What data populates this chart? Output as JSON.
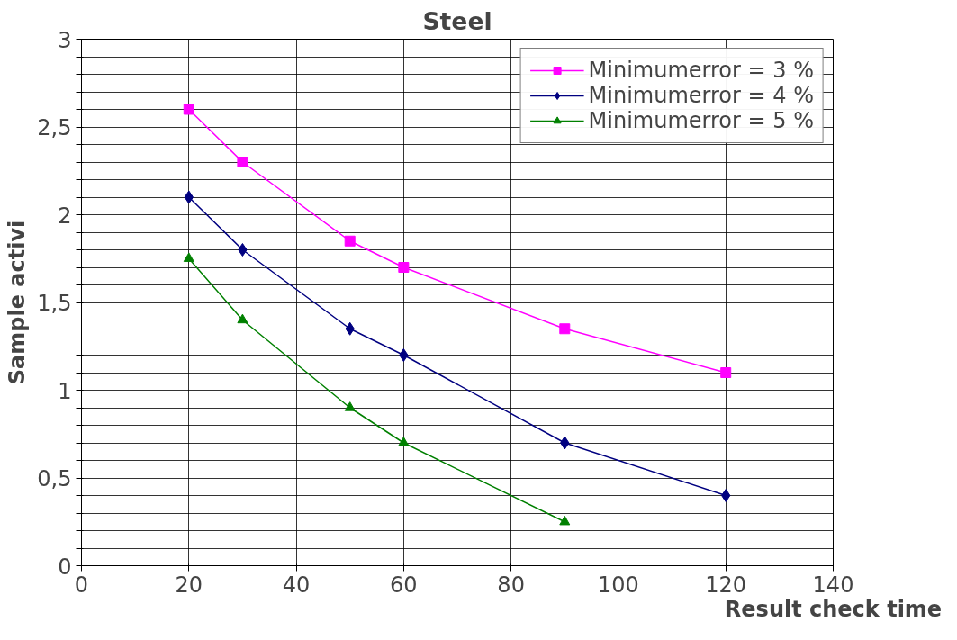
{
  "chart_data": {
    "type": "line",
    "title": "Steel",
    "xlabel": "Result check time",
    "ylabel": "Sample activi",
    "x": [
      20,
      30,
      50,
      60,
      90,
      120
    ],
    "series": [
      {
        "name": "Minimumerror = 3 %",
        "color": "#ff00ff",
        "marker": "square",
        "values": [
          2.6,
          2.3,
          1.85,
          1.7,
          1.35,
          1.1
        ]
      },
      {
        "name": "Minimumerror = 4 %",
        "color": "#000080",
        "marker": "diamond",
        "values": [
          2.1,
          1.8,
          1.35,
          1.2,
          0.7,
          0.4
        ]
      },
      {
        "name": "Minimumerror = 5 %",
        "color": "#008000",
        "marker": "triangle",
        "x": [
          20,
          30,
          50,
          60,
          90
        ],
        "values": [
          1.75,
          1.4,
          0.9,
          0.7,
          0.25
        ]
      }
    ],
    "xlim": [
      0,
      140
    ],
    "xticks": [
      0,
      20,
      40,
      60,
      80,
      100,
      120,
      140
    ],
    "ylim": [
      0,
      3
    ],
    "yticks": [
      0,
      {
        "value": 0.1,
        "label": null
      },
      {
        "value": 0.2,
        "label": null
      },
      {
        "value": 0.3,
        "label": null
      },
      {
        "value": 0.4,
        "label": null
      },
      {
        "value": 0.5,
        "label": "0,5"
      },
      {
        "value": 0.6,
        "label": null
      },
      {
        "value": 0.7,
        "label": null
      },
      {
        "value": 0.8,
        "label": null
      },
      {
        "value": 0.9,
        "label": null
      },
      1,
      {
        "value": 1.1,
        "label": null
      },
      {
        "value": 1.2,
        "label": null
      },
      {
        "value": 1.3,
        "label": null
      },
      {
        "value": 1.4,
        "label": null
      },
      {
        "value": 1.5,
        "label": "1,5"
      },
      {
        "value": 1.6,
        "label": null
      },
      {
        "value": 1.7,
        "label": null
      },
      {
        "value": 1.8,
        "label": null
      },
      {
        "value": 1.9,
        "label": null
      },
      2,
      {
        "value": 2.1,
        "label": null
      },
      {
        "value": 2.2,
        "label": null
      },
      {
        "value": 2.3,
        "label": null
      },
      {
        "value": 2.4,
        "label": null
      },
      {
        "value": 2.5,
        "label": "2,5"
      },
      {
        "value": 2.6,
        "label": null
      },
      {
        "value": 2.7,
        "label": null
      },
      {
        "value": 2.8,
        "label": null
      },
      {
        "value": 2.9,
        "label": null
      },
      3
    ],
    "grid": true,
    "legend": "top right",
    "line_style": "solid"
  }
}
